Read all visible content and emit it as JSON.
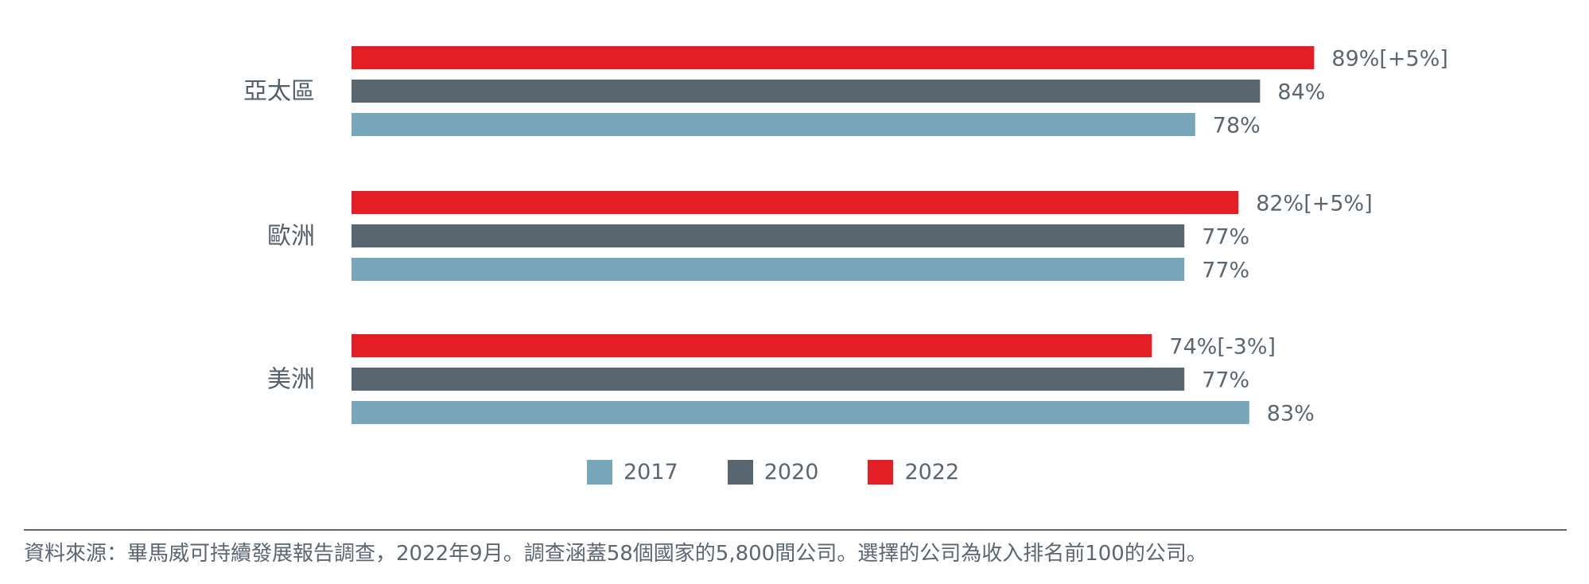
{
  "chart_data": {
    "type": "bar",
    "orientation": "horizontal",
    "categories": [
      "亞太區",
      "歐洲",
      "美洲"
    ],
    "series": [
      {
        "name": "2022",
        "color": "#e31e24",
        "values": [
          89,
          82,
          74
        ],
        "labels": [
          "89%[+5%]",
          "82%[+5%]",
          "74%[-3%]"
        ]
      },
      {
        "name": "2020",
        "color": "#59656f",
        "values": [
          84,
          77,
          77
        ],
        "labels": [
          "84%",
          "77%",
          "77%"
        ]
      },
      {
        "name": "2017",
        "color": "#77a6bb",
        "values": [
          78,
          77,
          83
        ],
        "labels": [
          "78%",
          "77%",
          "83%"
        ]
      }
    ],
    "legend": [
      {
        "name": "2017",
        "color": "#77a6bb"
      },
      {
        "name": "2020",
        "color": "#59656f"
      },
      {
        "name": "2022",
        "color": "#e31e24"
      }
    ],
    "legend_position": "bottom",
    "grid": false,
    "title": "",
    "xlabel": "",
    "ylabel": ""
  },
  "footnote": "資料來源：畢馬威可持續發展報告調查，2022年9月。調查涵蓋58個國家的5,800間公司。選擇的公司為收入排名前100的公司。"
}
